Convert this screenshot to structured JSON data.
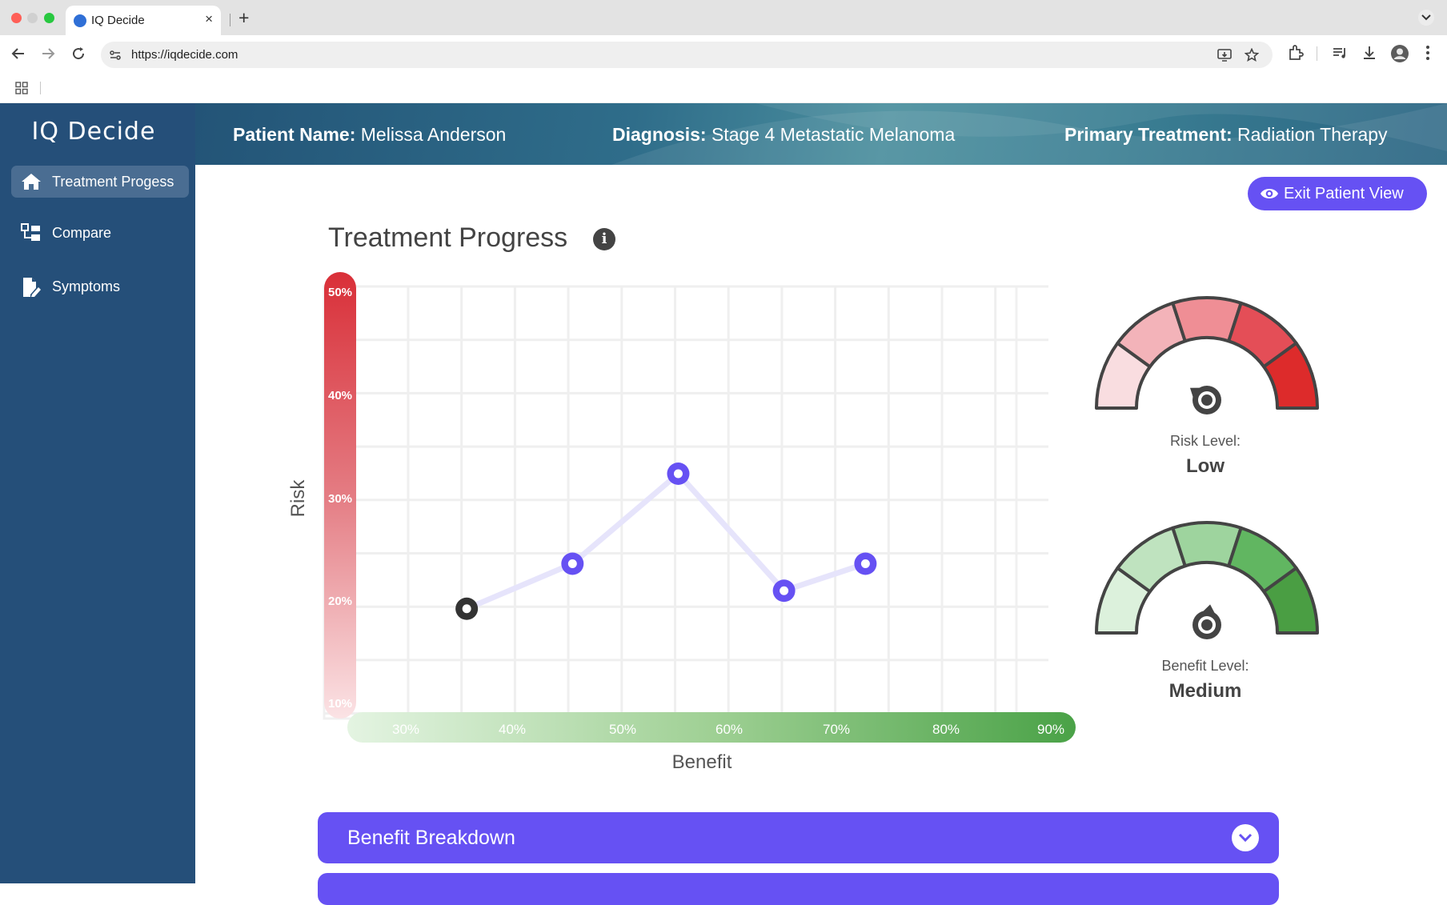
{
  "browser": {
    "tab_title": "IQ Decide",
    "tab_close": "×",
    "new_tab": "+",
    "url": "https://iqdecide.com"
  },
  "app": {
    "logo": "IQ Decide",
    "nav": [
      {
        "label": "Treatment Progess",
        "icon": "home-icon",
        "active": true
      },
      {
        "label": "Compare",
        "icon": "compare-icon",
        "active": false
      },
      {
        "label": "Symptoms",
        "icon": "symptoms-icon",
        "active": false
      }
    ]
  },
  "header": {
    "patient_label": "Patient Name:",
    "patient_value": "Melissa Anderson",
    "diagnosis_label": "Diagnosis:",
    "diagnosis_value": "Stage 4 Metastatic Melanoma",
    "treatment_label": "Primary Treatment:",
    "treatment_value": "Radiation Therapy"
  },
  "exit_button": "Exit Patient View",
  "page_title": "Treatment Progress",
  "info_glyph": "i",
  "chart_data": {
    "type": "line",
    "xlabel": "Benefit",
    "ylabel": "Risk",
    "x_ticks": [
      "30%",
      "40%",
      "50%",
      "60%",
      "70%",
      "80%",
      "90%"
    ],
    "y_ticks": [
      "50%",
      "40%",
      "30%",
      "20%",
      "10%"
    ],
    "xlim": [
      25,
      90
    ],
    "ylim": [
      10,
      50
    ],
    "grid": true,
    "series": [
      {
        "points": [
          {
            "x": 35,
            "y": 19
          },
          {
            "x": 45,
            "y": 24
          },
          {
            "x": 55,
            "y": 34
          },
          {
            "x": 65,
            "y": 21
          },
          {
            "x": 72.7,
            "y": 24
          }
        ]
      }
    ],
    "colors": {
      "first_point": "#333333",
      "points": "#6651f3",
      "line": "#e6e4fb"
    }
  },
  "gauges": [
    {
      "label": "Risk Level:",
      "value": "Low",
      "segments": [
        "#f9dde0",
        "#f3b3b9",
        "#ef8e95",
        "#e44e57",
        "#dd2b2b"
      ],
      "needle_fraction": 0.2
    },
    {
      "label": "Benefit Level:",
      "value": "Medium",
      "segments": [
        "#dcf1dc",
        "#bfe3bf",
        "#9ed49e",
        "#61b661",
        "#4a9e43"
      ],
      "needle_fraction": 0.55
    }
  ],
  "accordions": [
    {
      "label": "Benefit Breakdown"
    },
    {
      "label": ""
    }
  ]
}
